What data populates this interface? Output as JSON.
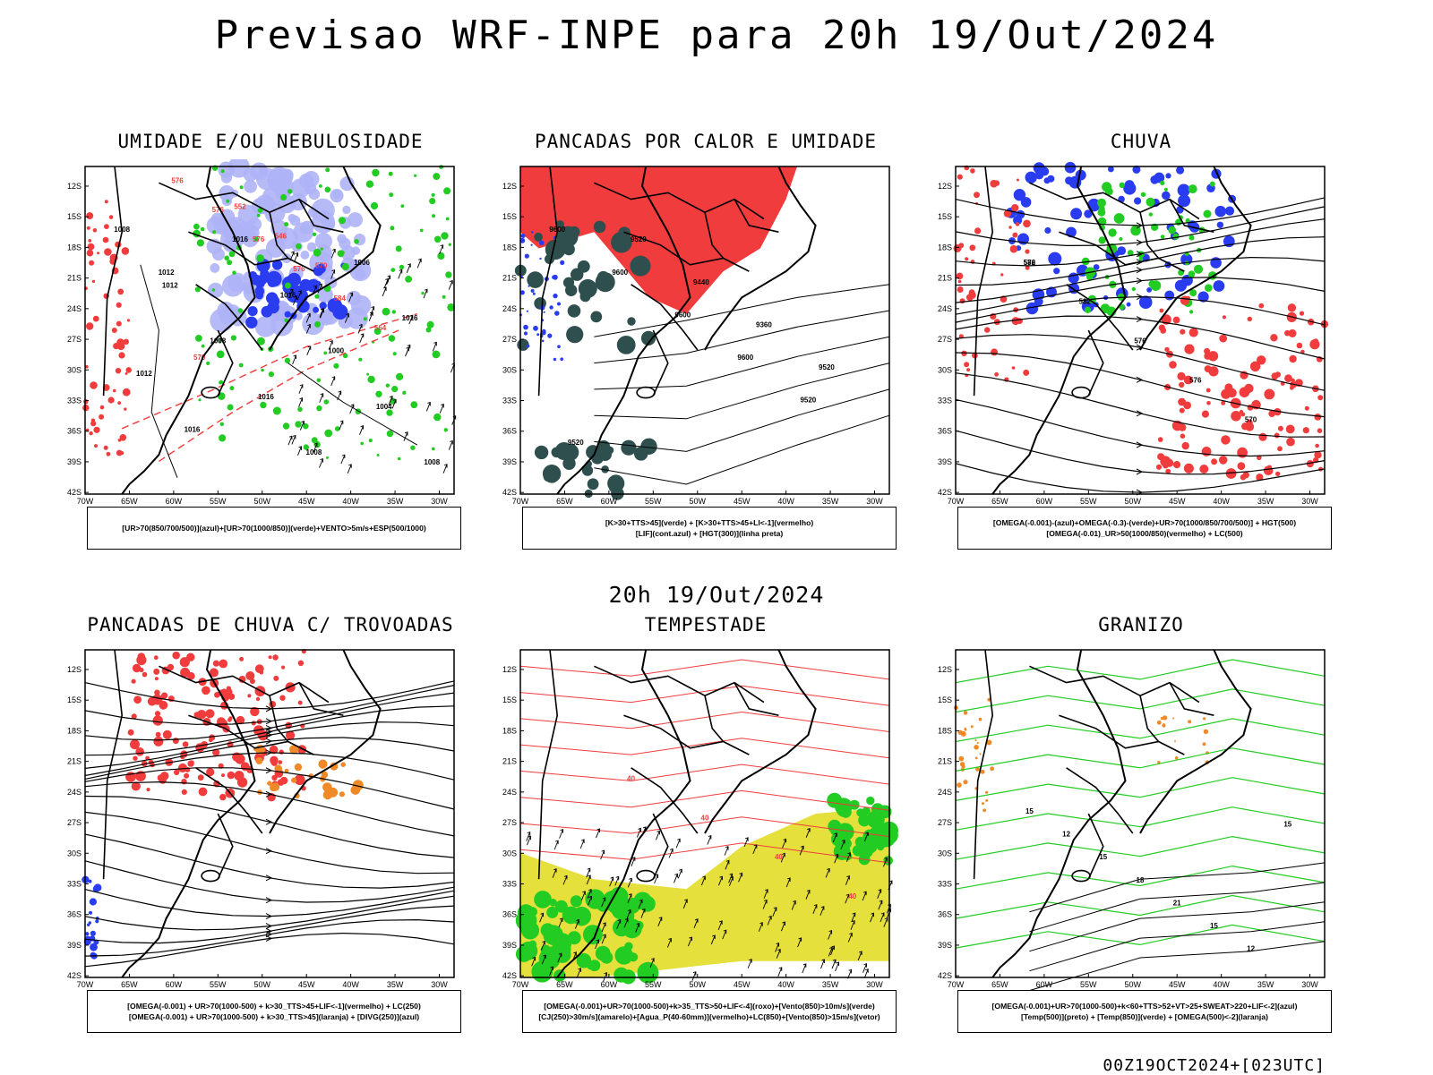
{
  "title": "Previsao WRF-INPE  para 20h 19/Out/2024",
  "mid_title": "20h 19/Out/2024",
  "footer": "00Z19OCT2024+[023UTC]",
  "axes": {
    "lat_labels": [
      "12S",
      "15S",
      "18S",
      "21S",
      "24S",
      "27S",
      "30S",
      "33S",
      "36S",
      "39S",
      "42S"
    ],
    "lon_labels": [
      "70W",
      "65W",
      "60W",
      "55W",
      "50W",
      "45W",
      "40W",
      "35W",
      "30W"
    ]
  },
  "colors": {
    "red": "#f03c3c",
    "green": "#22cc22",
    "blue": "#2a3cf0",
    "lightblue": "#aeb2f6",
    "darkteal": "#2f4f4f",
    "yellow": "#e6e03c",
    "orange": "#f08a28"
  },
  "panels": [
    {
      "title": "UMIDADE E/OU NEBULOSIDADE",
      "contours": [
        "1008",
        "1012",
        "1008",
        "1016",
        "1008",
        "1006",
        "1016",
        "1012",
        "1016",
        "1016",
        "1016",
        "1000",
        "1004",
        "1008",
        "1012"
      ],
      "red_contours": [
        "576",
        "576",
        "576",
        "576",
        "584",
        "564",
        "570",
        "552",
        "546",
        "570"
      ],
      "legend": [
        "[UR>70(850/700/500)](azul)+[UR>70(1000/850)](verde)+VENTO>5m/s+ESP(500/1000)"
      ]
    },
    {
      "title": "PANCADAS POR CALOR E UMIDADE",
      "contours": [
        "9600",
        "9600",
        "9600",
        "9600",
        "9520",
        "9520",
        "9520",
        "9440",
        "9360",
        "9520"
      ],
      "legend": [
        "[K>30+TTS>45](verde) + [K>30+TTS>45+LI<-1](vermelho)",
        "[LIF](cont.azul) + [HGT(300)](linha preta)"
      ]
    },
    {
      "title": "CHUVA",
      "contours": [
        "582",
        "582",
        "576",
        "576",
        "570",
        "576"
      ],
      "legend": [
        "[OMEGA(-0.001)-(azul)+OMEGA(-0.3)-(verde)+UR>70(1000/850/700/500)] + HGT(500)",
        "[OMEGA(-0.01)_UR>50(1000/850)(vermelho) + LC(500)"
      ]
    },
    {
      "title": "PANCADAS DE CHUVA C/ TROVOADAS",
      "legend": [
        "[OMEGA(-0.001) + UR>70(1000-500) + k>30_TTS>45+LIF<-1](vermelho) + LC(250)",
        "[OMEGA(-0.001) + UR>70(1000-500) + k>30_TTS>45](laranja) + [DIVG(250)](azul)"
      ]
    },
    {
      "title": "TEMPESTADE",
      "contours": [
        "40",
        "40",
        "40",
        "40"
      ],
      "legend": [
        "[OMEGA(-0.001)+UR>70(1000-500)+k>35_TTS>50+LIF<-4](roxo)+[Vento(850)>10m/s](verde)",
        "[CJ(250)>30m/s](amarelo)+[Agua_P(40-60mm)](vermelho)+LC(850)+[Vento(850)>15m/s](vetor)"
      ]
    },
    {
      "title": "GRANIZO",
      "contours": [
        "15",
        "12",
        "15",
        "18",
        "21",
        "15",
        "12",
        "15"
      ],
      "legend": [
        "[OMEGA(-0.001)+UR>70(1000-500)+k<60+TTS>52+VT>25+SWEAT>220+LIF<-2](azul)",
        "[Temp(500)](preto) + [Temp(850)](verde) + [OMEGA(500)<-2](laranja)"
      ]
    }
  ]
}
